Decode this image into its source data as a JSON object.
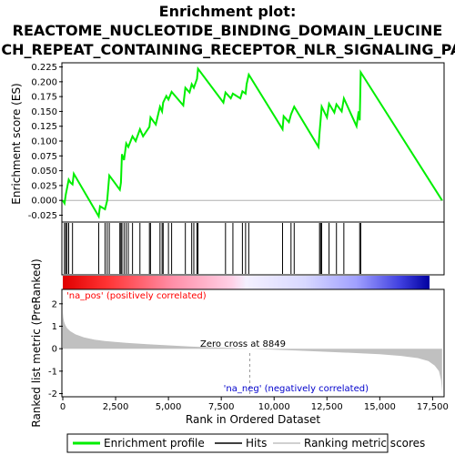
{
  "title_line1": "Enrichment plot:",
  "title_line2": "REACTOME_NUCLEOTIDE_BINDING_DOMAIN_LEUCINE",
  "title_line3": "RICH_REPEAT_CONTAINING_RECEPTOR_NLR_SIGNALING_PAT",
  "colors": {
    "enrichment_line": "#00ee00",
    "hits": "#000000",
    "metric_fill": "#c0c0c0",
    "pos_label": "#ff0000",
    "neg_label": "#0000cc"
  },
  "chart_data": [
    {
      "type": "line",
      "name": "enrichment_score",
      "ylabel": "Enrichment score (ES)",
      "xlim": [
        0,
        18000
      ],
      "ylim": [
        -0.035,
        0.232
      ],
      "yticks": [
        "0.225",
        "0.200",
        "0.175",
        "0.150",
        "0.125",
        "0.100",
        "0.075",
        "0.050",
        "0.025",
        "0.000",
        "-0.025"
      ],
      "ytick_values": [
        0.225,
        0.2,
        0.175,
        0.15,
        0.125,
        0.1,
        0.075,
        0.05,
        0.025,
        0.0,
        -0.025
      ],
      "series_name": "Enrichment profile",
      "x": [
        0,
        80,
        140,
        200,
        280,
        360,
        460,
        520,
        1700,
        1760,
        2000,
        2100,
        2200,
        2700,
        2750,
        2800,
        2900,
        3000,
        3100,
        3300,
        3450,
        3650,
        3800,
        4100,
        4150,
        4400,
        4600,
        4700,
        4750,
        4900,
        5000,
        5150,
        5700,
        5800,
        6000,
        6100,
        6200,
        6350,
        6400,
        7600,
        7700,
        7950,
        8050,
        8400,
        8500,
        8650,
        8700,
        8800,
        10400,
        10450,
        10700,
        10800,
        10950,
        12100,
        12150,
        12200,
        12250,
        12500,
        12600,
        12850,
        12950,
        13200,
        13300,
        13900,
        14000,
        14050,
        14100,
        17950
      ],
      "y": [
        0.0,
        -0.005,
        0.01,
        0.02,
        0.035,
        0.03,
        0.027,
        0.045,
        -0.027,
        -0.01,
        -0.015,
        0.0,
        0.042,
        0.018,
        0.03,
        0.078,
        0.068,
        0.096,
        0.09,
        0.108,
        0.1,
        0.12,
        0.108,
        0.124,
        0.14,
        0.128,
        0.158,
        0.15,
        0.165,
        0.176,
        0.17,
        0.183,
        0.16,
        0.19,
        0.182,
        0.196,
        0.19,
        0.205,
        0.222,
        0.165,
        0.182,
        0.172,
        0.18,
        0.172,
        0.184,
        0.18,
        0.196,
        0.212,
        0.12,
        0.142,
        0.132,
        0.145,
        0.158,
        0.09,
        0.115,
        0.135,
        0.158,
        0.14,
        0.163,
        0.148,
        0.162,
        0.15,
        0.172,
        0.125,
        0.15,
        0.135,
        0.216,
        0.0
      ]
    },
    {
      "type": "hits",
      "name": "hits",
      "positions": [
        80,
        140,
        200,
        280,
        460,
        1700,
        2000,
        2100,
        2200,
        2700,
        2750,
        2800,
        2900,
        3000,
        3100,
        3300,
        3650,
        4100,
        4150,
        4600,
        4700,
        4750,
        5000,
        5150,
        5800,
        6100,
        6200,
        6350,
        6400,
        7700,
        8050,
        8500,
        8650,
        8800,
        10400,
        10800,
        10950,
        12150,
        12200,
        12250,
        12600,
        12950,
        13300,
        14050,
        14100
      ]
    },
    {
      "type": "area",
      "name": "ranked_list_metric",
      "ylabel": "Ranked list metric (PreRanked)",
      "xlabel": "Rank in Ordered Dataset",
      "xlim": [
        0,
        18000
      ],
      "ylim": [
        -2.1,
        2.6
      ],
      "yticks": [
        "2",
        "1",
        "0",
        "-1",
        "-2"
      ],
      "ytick_values": [
        2,
        1,
        0,
        -1,
        -2
      ],
      "xticks": [
        "0",
        "2,500",
        "5,000",
        "7,500",
        "10,000",
        "12,500",
        "15,000",
        "17,500"
      ],
      "xtick_values": [
        0,
        2500,
        5000,
        7500,
        10000,
        12500,
        15000,
        17500
      ],
      "x": [
        0,
        20,
        60,
        120,
        200,
        350,
        600,
        1000,
        1500,
        2000,
        3000,
        4000,
        5000,
        6000,
        7000,
        8000,
        8849,
        10000,
        11000,
        12000,
        13000,
        14000,
        15000,
        16000,
        16800,
        17300,
        17600,
        17800,
        17900,
        17950
      ],
      "y": [
        1.65,
        1.4,
        1.2,
        1.05,
        0.92,
        0.78,
        0.64,
        0.5,
        0.4,
        0.34,
        0.26,
        0.2,
        0.15,
        0.1,
        0.06,
        0.03,
        0.0,
        -0.04,
        -0.08,
        -0.12,
        -0.16,
        -0.2,
        -0.25,
        -0.32,
        -0.42,
        -0.55,
        -0.75,
        -1.0,
        -1.4,
        -1.9
      ]
    }
  ],
  "annotations": {
    "pos_label": "'na_pos' (positively correlated)",
    "neg_label": "'na_neg' (negatively correlated)",
    "zero_cross": "Zero cross at 8849",
    "zero_cross_x": 8849
  },
  "legend": {
    "items": [
      {
        "label": "Enrichment profile",
        "kind": "green-line"
      },
      {
        "label": "Hits",
        "kind": "black-line"
      },
      {
        "label": "Ranking metric scores",
        "kind": "gray-line"
      }
    ]
  }
}
